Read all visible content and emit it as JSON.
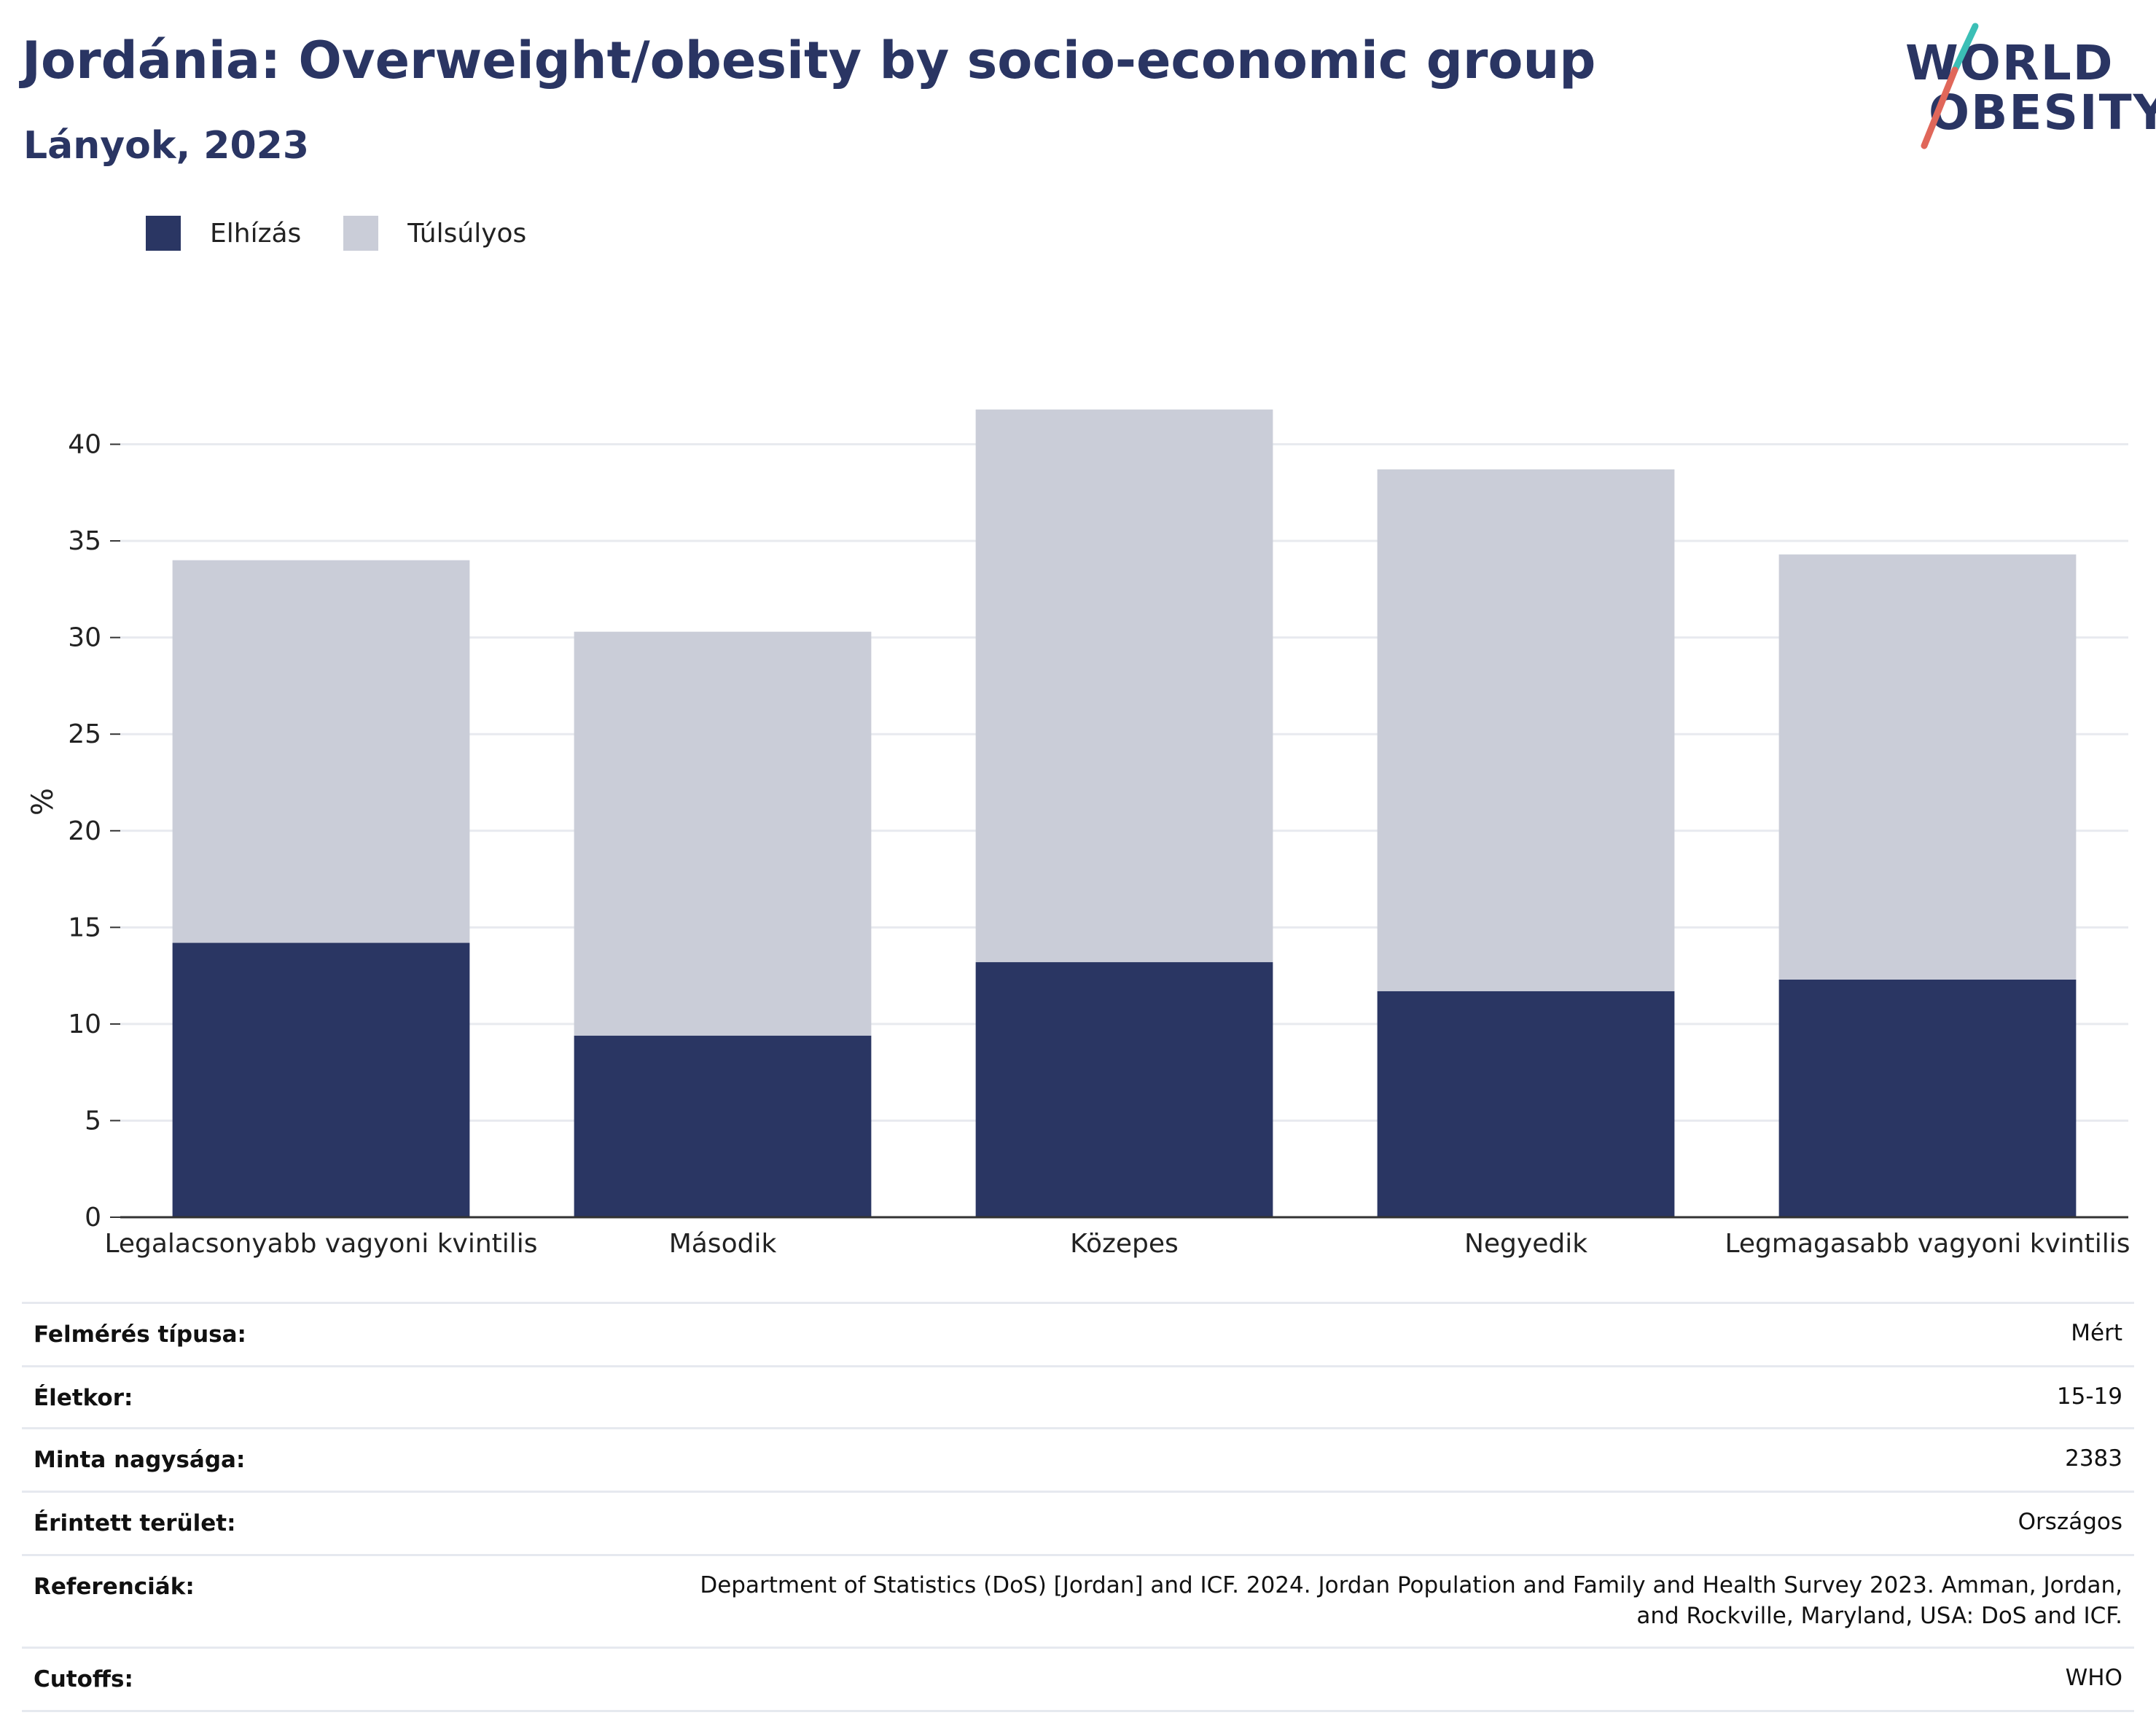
{
  "title": "Jordánia: Overweight/obesity by socio-economic group",
  "subtitle": "Lányok, 2023",
  "logo": {
    "line1": "WORLD",
    "line2": "OBESITY"
  },
  "colors": {
    "obesity": "#2a3663",
    "overweight": "#cacdd8",
    "title": "#2a3563",
    "grid": "#e8eaef",
    "axis": "#333333",
    "logo_teal": "#3bbfb6",
    "logo_red": "#e0675a"
  },
  "chart_data": {
    "type": "bar",
    "stacked": true,
    "categories": [
      "Legalacsonyabb vagyoni kvintilis",
      "Második",
      "Közepes",
      "Negyedik",
      "Legmagasabb vagyoni kvintilis"
    ],
    "series": [
      {
        "name": "Elhízás",
        "values": [
          14.2,
          9.4,
          13.2,
          11.7,
          12.3
        ]
      },
      {
        "name": "Túlsúlyos",
        "values": [
          19.8,
          20.9,
          28.6,
          27.0,
          22.0
        ]
      }
    ],
    "ylabel": "%",
    "ylim": [
      0,
      43
    ],
    "yticks": [
      0,
      5,
      10,
      15,
      20,
      25,
      30,
      35,
      40
    ],
    "grid": true,
    "legend_position": "top-left"
  },
  "meta": [
    {
      "key": "Felmérés típusa:",
      "value": "Mért"
    },
    {
      "key": "Életkor:",
      "value": "15-19"
    },
    {
      "key": "Minta nagysága:",
      "value": "2383"
    },
    {
      "key": "Érintett terület:",
      "value": "Országos"
    },
    {
      "key": "Referenciák:",
      "value": "Department of Statistics (DoS) [Jordan] and ICF. 2024. Jordan Population and Family and Health Survey 2023. Amman, Jordan, and Rockville, Maryland, USA: DoS and ICF."
    },
    {
      "key": "Cutoffs:",
      "value": "WHO"
    }
  ]
}
